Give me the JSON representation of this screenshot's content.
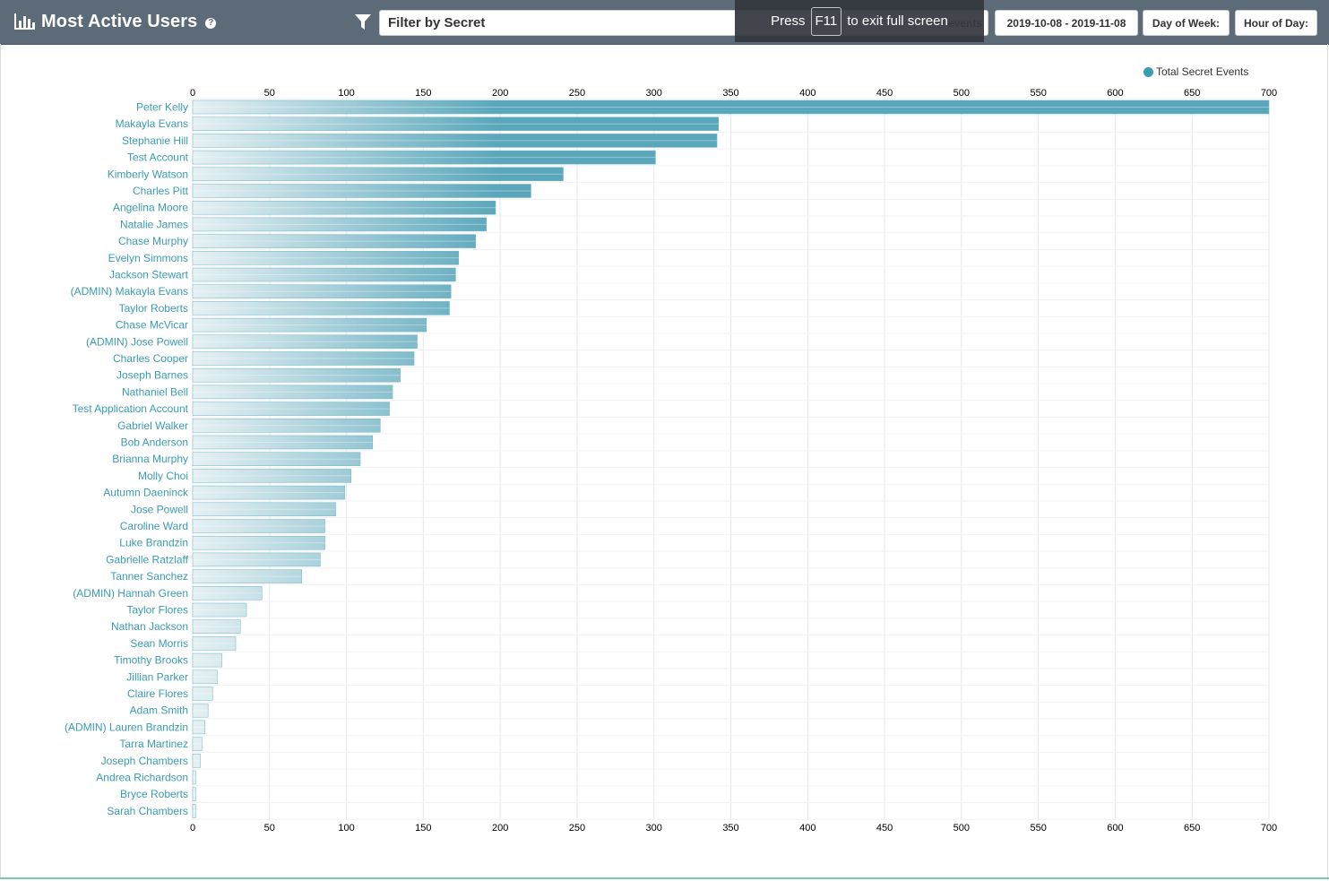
{
  "header": {
    "title": "Most Active Users",
    "help_icon": "question-circle-icon",
    "chart_icon": "bar-chart-icon",
    "filter_icon": "funnel-icon",
    "filter_placeholder": "Filter by Secret",
    "filter_suffix": "events",
    "date_range": "2019-10-08 - 2019-11-08",
    "day_of_week": "Day of Week:",
    "hour_of_day": "Hour of Day:"
  },
  "overlay": {
    "press": "Press",
    "key": "F11",
    "message": "to exit full screen"
  },
  "colors": {
    "header_bg": "#5d6b79",
    "bar": "#5aa7bb",
    "bar_light": "#e6f1f4",
    "label": "#3a9bb1",
    "legend_dot": "#3a9bb1"
  },
  "chart_data": {
    "type": "bar",
    "orientation": "horizontal",
    "series": [
      {
        "name": "Total Secret Events",
        "values": [
          700,
          342,
          341,
          301,
          241,
          220,
          197,
          191,
          184,
          173,
          171,
          168,
          167,
          152,
          146,
          144,
          135,
          130,
          128,
          122,
          117,
          109,
          103,
          99,
          93,
          86,
          86,
          83,
          71,
          45,
          35,
          31,
          28,
          19,
          16,
          13,
          10,
          8,
          6,
          5,
          2,
          2,
          2
        ]
      }
    ],
    "categories": [
      "Peter Kelly",
      "Makayla Evans",
      "Stephanie Hill",
      "Test Account",
      "Kimberly Watson",
      "Charles Pitt",
      "Angelina Moore",
      "Natalie James",
      "Chase Murphy",
      "Evelyn Simmons",
      "Jackson Stewart",
      "(ADMIN) Makayla Evans",
      "Taylor Roberts",
      "Chase McVicar",
      "(ADMIN) Jose Powell",
      "Charles Cooper",
      "Joseph Barnes",
      "Nathaniel Bell",
      "Test Application Account",
      "Gabriel Walker",
      "Bob Anderson",
      "Brianna Murphy",
      "Molly Choi",
      "Autumn Daeninck",
      "Jose Powell",
      "Caroline Ward",
      "Luke Brandzin",
      "Gabrielle Ratzlaff",
      "Tanner Sanchez",
      "(ADMIN) Hannah Green",
      "Taylor Flores",
      "Nathan Jackson",
      "Sean Morris",
      "Timothy Brooks",
      "Jillian Parker",
      "Claire Flores",
      "Adam Smith",
      "(ADMIN) Lauren Brandzin",
      "Tarra Martinez",
      "Joseph Chambers",
      "Andrea Richardson",
      "Bryce Roberts",
      "Sarah Chambers"
    ],
    "xlim": [
      0,
      700
    ],
    "xticks": [
      0,
      50,
      100,
      150,
      200,
      250,
      300,
      350,
      400,
      450,
      500,
      550,
      600,
      650,
      700
    ],
    "axis_top": true,
    "axis_bottom": true,
    "grid": true,
    "legend_position": "top-right"
  }
}
